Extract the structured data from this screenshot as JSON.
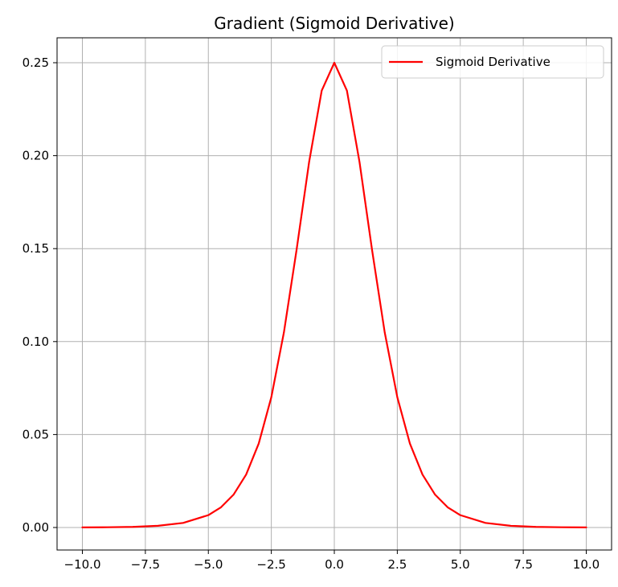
{
  "chart_data": {
    "type": "line",
    "title": "Gradient (Sigmoid Derivative)",
    "xlabel": "",
    "ylabel": "",
    "xlim": [
      -10.0,
      10.0
    ],
    "ylim": [
      0.0,
      0.25
    ],
    "x_ticks": [
      "−10.0",
      "−7.5",
      "−5.0",
      "−2.5",
      "0.0",
      "2.5",
      "5.0",
      "7.5",
      "10.0"
    ],
    "y_ticks": [
      "0.00",
      "0.05",
      "0.10",
      "0.15",
      "0.20",
      "0.25"
    ],
    "grid": true,
    "legend_position": "top-right",
    "series": [
      {
        "name": "Sigmoid Derivative",
        "color": "#ff0000",
        "x": [
          -10,
          -9,
          -8,
          -7,
          -6,
          -5,
          -4.5,
          -4,
          -3.5,
          -3,
          -2.5,
          -2,
          -1.5,
          -1,
          -0.5,
          0,
          0.5,
          1,
          1.5,
          2,
          2.5,
          3,
          3.5,
          4,
          4.5,
          5,
          6,
          7,
          8,
          9,
          10
        ],
        "y": [
          4.54e-05,
          0.0001234,
          0.000335,
          0.00091,
          0.002467,
          0.006648,
          0.010866,
          0.017663,
          0.028453,
          0.045177,
          0.070104,
          0.104994,
          0.149146,
          0.196612,
          0.235004,
          0.25,
          0.235004,
          0.196612,
          0.149146,
          0.104994,
          0.070104,
          0.045177,
          0.028453,
          0.017663,
          0.010866,
          0.006648,
          0.002467,
          0.00091,
          0.000335,
          0.0001234,
          4.54e-05
        ]
      }
    ]
  }
}
